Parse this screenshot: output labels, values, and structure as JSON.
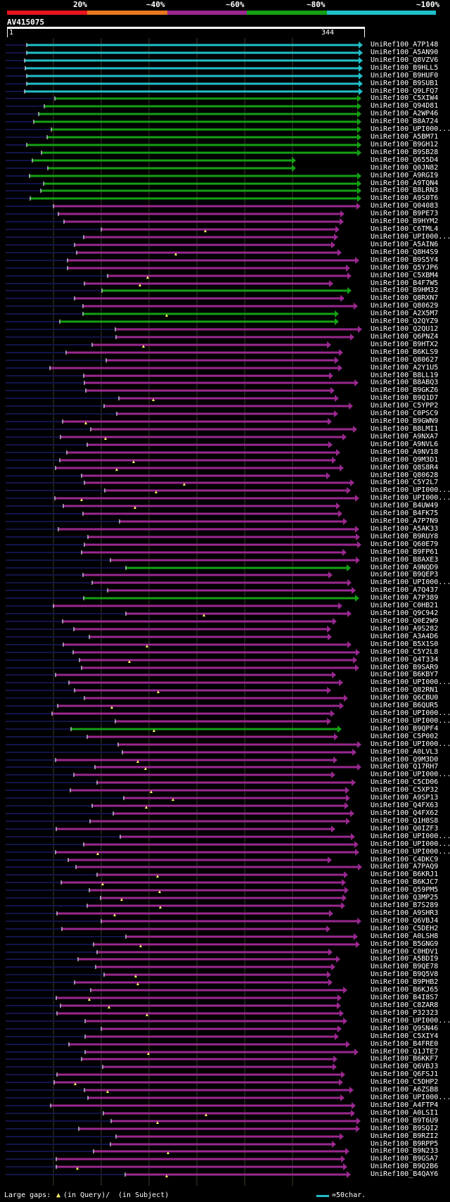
{
  "colorbar": {
    "ticks": [
      "20%",
      "~40%",
      "~60%",
      "~80%",
      "~100%"
    ],
    "segments": [
      {
        "color": "#e8141e"
      },
      {
        "color": "#e87820"
      },
      {
        "color": "#9a2890"
      },
      {
        "color": "#14a014"
      },
      {
        "color": "#20c0c8"
      }
    ]
  },
  "query": {
    "title": "AV415075",
    "start": "1",
    "end": "344"
  },
  "legend": {
    "prefix": "Large gaps:",
    "query_text": "(in Query)/",
    "subject_text": "(in Subject)",
    "scale_text": "=50char."
  },
  "hits": [
    {
      "name": "UniRef100_A7P148",
      "cls": "c"
    },
    {
      "name": "UniRef100_A5AN90",
      "cls": "c"
    },
    {
      "name": "UniRef100_Q8VZV6",
      "cls": "c"
    },
    {
      "name": "UniRef100_B9HLL5",
      "cls": "c"
    },
    {
      "name": "UniRef100_B9HUF0",
      "cls": "c"
    },
    {
      "name": "UniRef100_B9SUB1",
      "cls": "c"
    },
    {
      "name": "UniRef100_Q9LFQ7",
      "cls": "c"
    },
    {
      "name": "UniRef100_C5XIW4",
      "cls": "g"
    },
    {
      "name": "UniRef100_Q94D81",
      "cls": "g"
    },
    {
      "name": "UniRef100_A2WP46",
      "cls": "g"
    },
    {
      "name": "UniRef100_B8A724",
      "cls": "g"
    },
    {
      "name": "UniRef100_UPI000...",
      "cls": "g"
    },
    {
      "name": "UniRef100_A5BM71",
      "cls": "g"
    },
    {
      "name": "UniRef100_B9GH12",
      "cls": "g"
    },
    {
      "name": "UniRef100_B9SB28",
      "cls": "g"
    },
    {
      "name": "UniRef100_Q655D4",
      "cls": "g"
    },
    {
      "name": "UniRef100_Q0JN82",
      "cls": "g"
    },
    {
      "name": "UniRef100_A9RGI9",
      "cls": "g"
    },
    {
      "name": "UniRef100_A9TQN4",
      "cls": "g"
    },
    {
      "name": "UniRef100_B8LRN3",
      "cls": "g"
    },
    {
      "name": "UniRef100_A9S0T6",
      "cls": "g"
    },
    {
      "name": "UniRef100_Q04083",
      "cls": "p"
    },
    {
      "name": "UniRef100_B9PE73",
      "cls": "p"
    },
    {
      "name": "UniRef100_B9HYM2",
      "cls": "p"
    },
    {
      "name": "UniRef100_C6TML4",
      "cls": "p"
    },
    {
      "name": "UniRef100_UPI000...",
      "cls": "p"
    },
    {
      "name": "UniRef100_A5AIN6",
      "cls": "p"
    },
    {
      "name": "UniRef100_Q8H4S9",
      "cls": "p"
    },
    {
      "name": "UniRef100_B9S5Y4",
      "cls": "p"
    },
    {
      "name": "UniRef100_Q5YJP6",
      "cls": "p"
    },
    {
      "name": "UniRef100_C5XBM4",
      "cls": "p"
    },
    {
      "name": "UniRef100_B4F7W5",
      "cls": "p"
    },
    {
      "name": "UniRef100_B9HM32",
      "cls": "g"
    },
    {
      "name": "UniRef100_Q8RXN7",
      "cls": "p"
    },
    {
      "name": "UniRef100_Q80629",
      "cls": "p"
    },
    {
      "name": "UniRef100_A2X5M7",
      "cls": "g"
    },
    {
      "name": "UniRef100_Q2QYZ9",
      "cls": "g"
    },
    {
      "name": "UniRef100_Q2QU12",
      "cls": "p"
    },
    {
      "name": "UniRef100_Q6PNZ4",
      "cls": "p"
    },
    {
      "name": "UniRef100_B9HTX2",
      "cls": "p"
    },
    {
      "name": "UniRef100_B6KLS9",
      "cls": "p"
    },
    {
      "name": "UniRef100_Q80627",
      "cls": "p"
    },
    {
      "name": "UniRef100_A2Y1U5",
      "cls": "p"
    },
    {
      "name": "UniRef100_B8LL19",
      "cls": "p"
    },
    {
      "name": "UniRef100_B8ABQ3",
      "cls": "p"
    },
    {
      "name": "UniRef100_B9GKZ6",
      "cls": "p"
    },
    {
      "name": "UniRef100_B9Q1D7",
      "cls": "p"
    },
    {
      "name": "UniRef100_C5YPP2",
      "cls": "p"
    },
    {
      "name": "UniRef100_C0PSC9",
      "cls": "p"
    },
    {
      "name": "UniRef100_B9GWN9",
      "cls": "p"
    },
    {
      "name": "UniRef100_B8LMI1",
      "cls": "p"
    },
    {
      "name": "UniRef100_A9NXA7",
      "cls": "p"
    },
    {
      "name": "UniRef100_A9NVL6",
      "cls": "p"
    },
    {
      "name": "UniRef100_A9NV18",
      "cls": "p"
    },
    {
      "name": "UniRef100_Q9M3D1",
      "cls": "p"
    },
    {
      "name": "UniRef100_Q8S8R4",
      "cls": "p"
    },
    {
      "name": "UniRef100_Q80628",
      "cls": "p"
    },
    {
      "name": "UniRef100_C5Y2L7",
      "cls": "p"
    },
    {
      "name": "UniRef100_UPI000...",
      "cls": "p"
    },
    {
      "name": "UniRef100_UPI000...",
      "cls": "p"
    },
    {
      "name": "UniRef100_B4UW49",
      "cls": "p"
    },
    {
      "name": "UniRef100_B4FK75",
      "cls": "p"
    },
    {
      "name": "UniRef100_A7P7N9",
      "cls": "p"
    },
    {
      "name": "UniRef100_A5AK33",
      "cls": "p"
    },
    {
      "name": "UniRef100_B9RUY8",
      "cls": "p"
    },
    {
      "name": "UniRef100_Q60E79",
      "cls": "p"
    },
    {
      "name": "UniRef100_B9FP61",
      "cls": "p"
    },
    {
      "name": "UniRef100_B8AXE3",
      "cls": "p"
    },
    {
      "name": "UniRef100_A9NQD9",
      "cls": "g"
    },
    {
      "name": "UniRef100_B9QEP3",
      "cls": "p"
    },
    {
      "name": "UniRef100_UPI000...",
      "cls": "p"
    },
    {
      "name": "UniRef100_A7Q437",
      "cls": "p"
    },
    {
      "name": "UniRef100_A7P389",
      "cls": "g"
    },
    {
      "name": "UniRef100_C0HB21",
      "cls": "p"
    },
    {
      "name": "UniRef100_Q9C942",
      "cls": "p"
    },
    {
      "name": "UniRef100_Q0E2W9",
      "cls": "p"
    },
    {
      "name": "UniRef100_A9S282",
      "cls": "p"
    },
    {
      "name": "UniRef100_A3A4D6",
      "cls": "p"
    },
    {
      "name": "UniRef100_B5X1S0",
      "cls": "p"
    },
    {
      "name": "UniRef100_C5Y2L8",
      "cls": "p"
    },
    {
      "name": "UniRef100_Q4T334",
      "cls": "p"
    },
    {
      "name": "UniRef100_B9SAR9",
      "cls": "p"
    },
    {
      "name": "UniRef100_B6KBY7",
      "cls": "p"
    },
    {
      "name": "UniRef100_UPI000...",
      "cls": "p"
    },
    {
      "name": "UniRef100_Q82RN1",
      "cls": "p"
    },
    {
      "name": "UniRef100_Q6CBU0",
      "cls": "p"
    },
    {
      "name": "UniRef100_B6QUR5",
      "cls": "p"
    },
    {
      "name": "UniRef100_UPI000...",
      "cls": "p"
    },
    {
      "name": "UniRef100_UPI000...",
      "cls": "p"
    },
    {
      "name": "UniRef100_B9QPF4",
      "cls": "g"
    },
    {
      "name": "UniRef100_C5P002",
      "cls": "p"
    },
    {
      "name": "UniRef100_UPI000...",
      "cls": "p"
    },
    {
      "name": "UniRef100_A0LVL3",
      "cls": "p"
    },
    {
      "name": "UniRef100_Q9M3D0",
      "cls": "p"
    },
    {
      "name": "UniRef100_Q17RH7",
      "cls": "p"
    },
    {
      "name": "UniRef100_UPI000...",
      "cls": "p"
    },
    {
      "name": "UniRef100_C5CD06",
      "cls": "p"
    },
    {
      "name": "UniRef100_C5XP32",
      "cls": "p"
    },
    {
      "name": "UniRef100_A9SP13",
      "cls": "p"
    },
    {
      "name": "UniRef100_Q4FX63",
      "cls": "p"
    },
    {
      "name": "UniRef100_Q4FX62",
      "cls": "p"
    },
    {
      "name": "UniRef100_Q1H8S8",
      "cls": "p"
    },
    {
      "name": "UniRef100_Q0IZF3",
      "cls": "p"
    },
    {
      "name": "UniRef100_UPI000...",
      "cls": "p"
    },
    {
      "name": "UniRef100_UPI000...",
      "cls": "p"
    },
    {
      "name": "UniRef100_UPI000...",
      "cls": "p"
    },
    {
      "name": "UniRef100_C4DKC9",
      "cls": "p"
    },
    {
      "name": "UniRef100_A7PAQ9",
      "cls": "p"
    },
    {
      "name": "UniRef100_B6KRJ1",
      "cls": "p"
    },
    {
      "name": "UniRef100_B6KJC7",
      "cls": "p"
    },
    {
      "name": "UniRef100_Q59PM5",
      "cls": "p"
    },
    {
      "name": "UniRef100_Q3MP25",
      "cls": "p"
    },
    {
      "name": "UniRef100_B7S289",
      "cls": "p"
    },
    {
      "name": "UniRef100_A9SHR3",
      "cls": "p"
    },
    {
      "name": "UniRef100_Q6VBJ4",
      "cls": "p"
    },
    {
      "name": "UniRef100_C5DEH2",
      "cls": "p"
    },
    {
      "name": "UniRef100_A0LSH8",
      "cls": "p"
    },
    {
      "name": "UniRef100_B5GNG9",
      "cls": "p"
    },
    {
      "name": "UniRef100_C0HDV1",
      "cls": "p"
    },
    {
      "name": "UniRef100_A5BDI9",
      "cls": "p"
    },
    {
      "name": "UniRef100_B9QE78",
      "cls": "p"
    },
    {
      "name": "UniRef100_B9Q5V8",
      "cls": "p"
    },
    {
      "name": "UniRef100_B9PHB2",
      "cls": "p"
    },
    {
      "name": "UniRef100_B6KJ65",
      "cls": "p"
    },
    {
      "name": "UniRef100_B4I8S7",
      "cls": "p"
    },
    {
      "name": "UniRef100_C8ZAR8",
      "cls": "p"
    },
    {
      "name": "UniRef100_P32323",
      "cls": "p"
    },
    {
      "name": "UniRef100_UPI000...",
      "cls": "p"
    },
    {
      "name": "UniRef100_Q9SN46",
      "cls": "p"
    },
    {
      "name": "UniRef100_C5XIY4",
      "cls": "p"
    },
    {
      "name": "UniRef100_B4FRE0",
      "cls": "p"
    },
    {
      "name": "UniRef100_Q1JTE7",
      "cls": "p"
    },
    {
      "name": "UniRef100_B6KKF7",
      "cls": "p"
    },
    {
      "name": "UniRef100_Q6VBJ3",
      "cls": "p"
    },
    {
      "name": "UniRef100_Q6FSJ1",
      "cls": "p"
    },
    {
      "name": "UniRef100_C5DHP2",
      "cls": "p"
    },
    {
      "name": "UniRef100_A6ZSB8",
      "cls": "p"
    },
    {
      "name": "UniRef100_UPI000...",
      "cls": "p"
    },
    {
      "name": "UniRef100_A4FTP4",
      "cls": "p"
    },
    {
      "name": "UniRef100_A0LSI1",
      "cls": "p"
    },
    {
      "name": "UniRef100_B9T6U9",
      "cls": "p"
    },
    {
      "name": "UniRef100_B9SQI2",
      "cls": "p"
    },
    {
      "name": "UniRef100_B9RZI2",
      "cls": "p"
    },
    {
      "name": "UniRef100_B9RPP5",
      "cls": "p"
    },
    {
      "name": "UniRef100_B9N233",
      "cls": "p"
    },
    {
      "name": "UniRef100_B9GSA7",
      "cls": "p"
    },
    {
      "name": "UniRef100_B9Q2B6",
      "cls": "p"
    },
    {
      "name": "UniRef100_B4QAY6",
      "cls": "p"
    }
  ]
}
